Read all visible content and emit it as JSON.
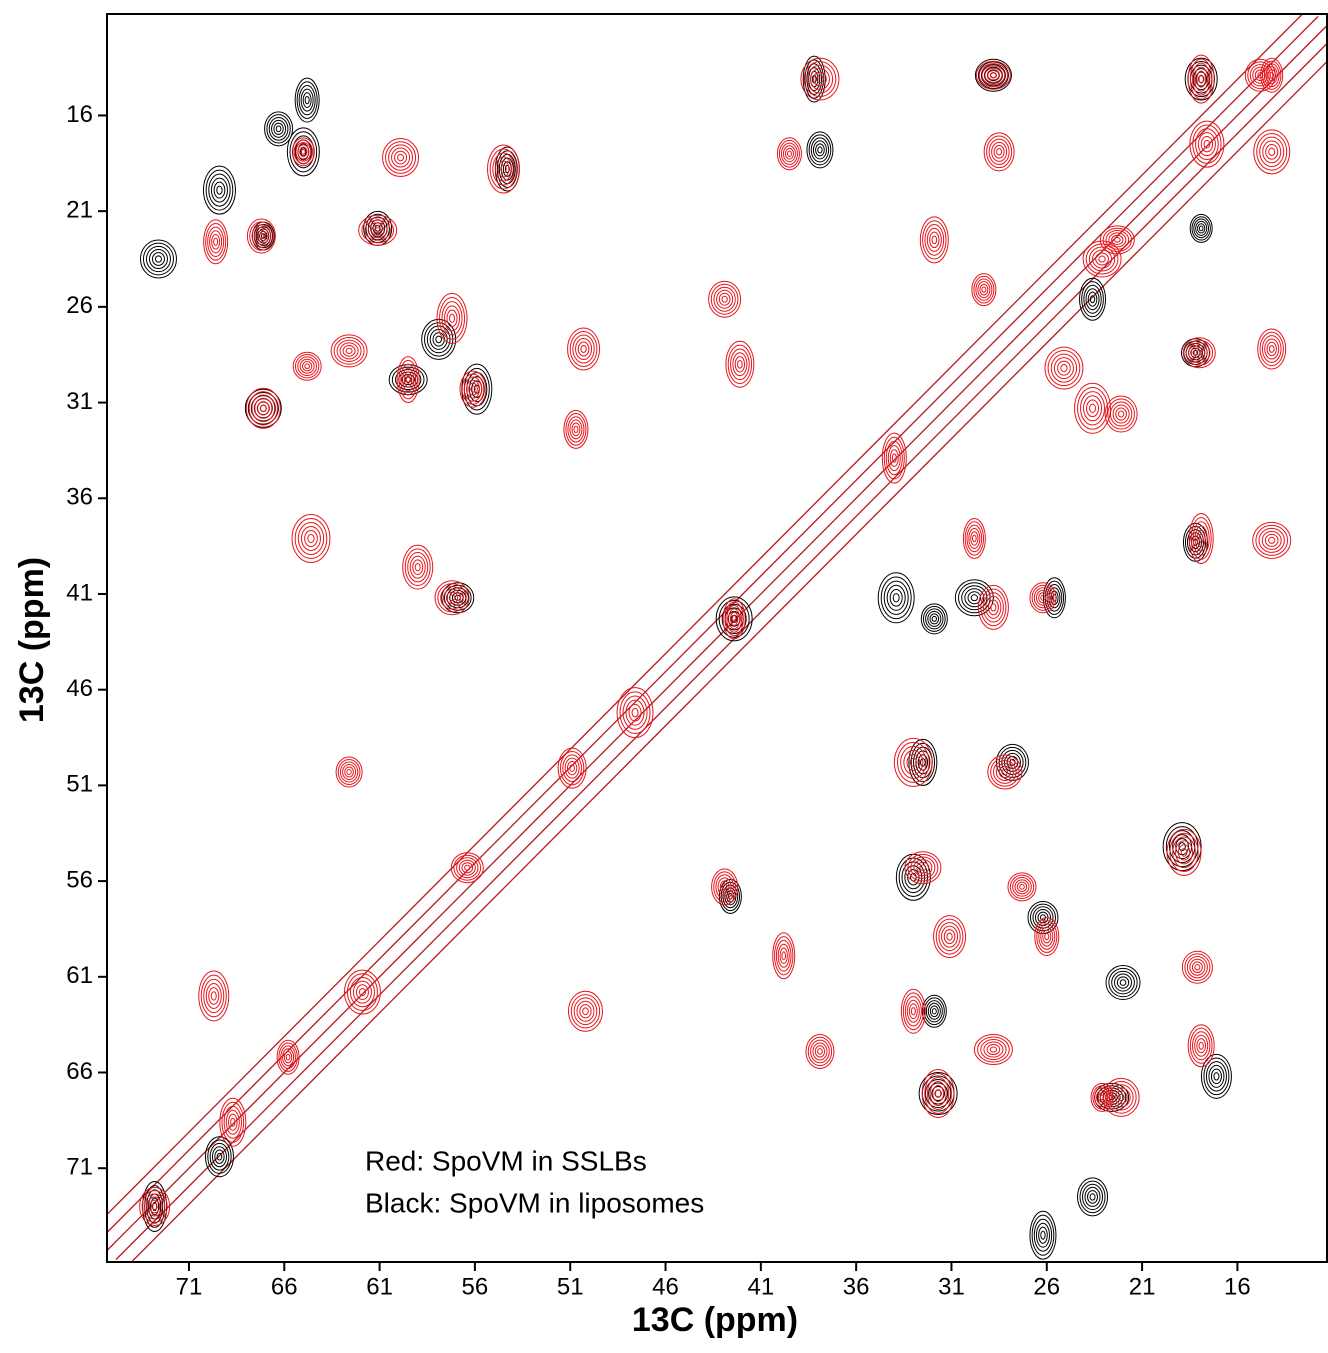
{
  "chart_data": {
    "type": "contour",
    "xlabel": "13C (ppm)",
    "ylabel": "13C (ppm)",
    "xlim": [
      75.3,
      11.3
    ],
    "ylim": [
      75.9,
      10.7
    ],
    "xticks": [
      71,
      66,
      61,
      56,
      51,
      46,
      41,
      36,
      31,
      26,
      21,
      16
    ],
    "yticks": [
      16,
      21,
      26,
      31,
      36,
      41,
      46,
      51,
      56,
      61,
      66,
      71
    ],
    "series": [
      {
        "name": "Red: SpoVM in SSLBs",
        "color": "#e8141b",
        "x": [
          65.0,
          59.9,
          54.5,
          67.2,
          69.6,
          61.1,
          67.1,
          57.2,
          56.1,
          59.5,
          62.6,
          50.3,
          64.8,
          50.7,
          64.6,
          57.2,
          59.0,
          62.6,
          42.4,
          47.6,
          42.9,
          42.1,
          39.5,
          37.9,
          28.8,
          28.5,
          17.9,
          14.2,
          14.2,
          18.0,
          14.2,
          17.9,
          14.2,
          18.8,
          18.1,
          17.9,
          23.1,
          22.1,
          31.7,
          37.9,
          33.0,
          28.8,
          50.2,
          69.7,
          42.9,
          39.8,
          32.5,
          31.1,
          27.3,
          26.0,
          33.0,
          28.2,
          28.8,
          26.2,
          29.8,
          23.6,
          22.1,
          31.9,
          29.3,
          25.1,
          22.3,
          72.8,
          68.7,
          65.8,
          61.9,
          56.4,
          50.9,
          34.0,
          23.1,
          17.6,
          14.8
        ],
        "y": [
          17.9,
          18.2,
          18.8,
          22.3,
          22.6,
          22.0,
          31.3,
          26.6,
          30.3,
          29.8,
          28.3,
          28.2,
          29.1,
          32.4,
          38.1,
          41.2,
          39.6,
          50.3,
          42.3,
          47.2,
          25.6,
          29.0,
          18.0,
          14.1,
          13.9,
          17.9,
          14.1,
          13.9,
          17.9,
          28.4,
          28.2,
          38.1,
          38.2,
          54.5,
          60.5,
          64.6,
          67.3,
          67.3,
          67.1,
          64.9,
          62.8,
          64.8,
          62.8,
          62.0,
          56.3,
          59.9,
          55.3,
          58.9,
          56.3,
          58.9,
          49.8,
          50.3,
          41.7,
          41.2,
          38.1,
          31.3,
          31.6,
          22.5,
          25.1,
          29.2,
          22.5,
          73.0,
          68.6,
          65.2,
          61.8,
          55.3,
          50.1,
          33.9,
          23.5,
          17.5,
          13.9
        ]
      },
      {
        "name": "Black: SpoVM in liposomes",
        "color": "#000000",
        "x": [
          67.1,
          67.1,
          65.0,
          61.1,
          54.3,
          59.5,
          57.9,
          55.9,
          37.9,
          38.2,
          28.8,
          17.9,
          18.2,
          18.2,
          18.9,
          22.0,
          17.1,
          31.9,
          25.6,
          33.9,
          27.8,
          32.5,
          31.9,
          31.7,
          22.6,
          23.6,
          26.2,
          42.6,
          42.4,
          56.9,
          69.4,
          72.8,
          29.8,
          33.0,
          26.2,
          23.6,
          17.9,
          72.6,
          69.4,
          66.3,
          64.8
        ],
        "y": [
          22.3,
          31.3,
          17.9,
          21.9,
          18.8,
          29.8,
          27.7,
          30.3,
          17.8,
          14.1,
          13.9,
          14.1,
          28.4,
          38.3,
          54.2,
          61.3,
          66.2,
          42.3,
          41.2,
          41.2,
          49.8,
          49.8,
          62.8,
          67.1,
          67.3,
          72.5,
          74.5,
          56.8,
          42.3,
          41.2,
          70.4,
          73.0,
          41.2,
          55.8,
          57.9,
          25.6,
          21.9,
          23.5,
          19.9,
          16.7,
          15.2
        ]
      }
    ]
  }
}
